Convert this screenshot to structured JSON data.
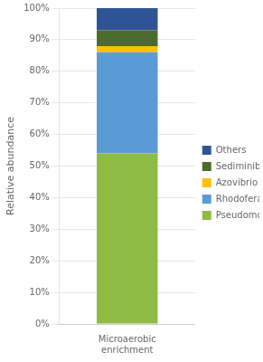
{
  "chart_data": {
    "type": "bar",
    "stacked": true,
    "categories": [
      "Microaerobic\nenrichment"
    ],
    "series": [
      {
        "name": "Pseudomonas",
        "values": [
          54.0
        ],
        "color": "#8fbc45"
      },
      {
        "name": "Rhodoferax",
        "values": [
          32.0
        ],
        "color": "#5b9bd5"
      },
      {
        "name": "Azovibrio",
        "values": [
          2.0
        ],
        "color": "#ffc000"
      },
      {
        "name": "Sediminibacterium",
        "values": [
          5.0
        ],
        "color": "#4e6b2e"
      },
      {
        "name": "Others",
        "values": [
          7.0
        ],
        "color": "#2f5496"
      }
    ],
    "ylabel": "Relative abundance",
    "ylim": [
      0,
      100
    ],
    "yticks": [
      {
        "value": 0,
        "label": "0%"
      },
      {
        "value": 10,
        "label": "10%"
      },
      {
        "value": 20,
        "label": "20%"
      },
      {
        "value": 30,
        "label": "30%"
      },
      {
        "value": 40,
        "label": "40%"
      },
      {
        "value": 50,
        "label": "50%"
      },
      {
        "value": 60,
        "label": "60%"
      },
      {
        "value": 70,
        "label": "70%"
      },
      {
        "value": 80,
        "label": "80%"
      },
      {
        "value": 90,
        "label": "90%"
      },
      {
        "value": 100,
        "label": "100%"
      }
    ],
    "grid": true,
    "legend": "right"
  }
}
